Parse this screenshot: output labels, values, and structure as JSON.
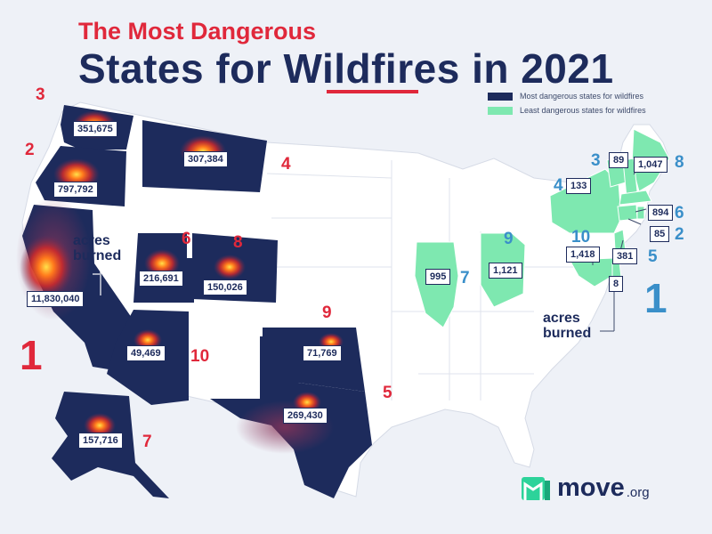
{
  "title": {
    "line1": "The Most Dangerous",
    "line2": "States for Wildfires in 2021"
  },
  "legend": {
    "most": "Most dangerous states for wildfires",
    "least": "Least dangerous states for wildfires",
    "colors": {
      "most": "#1d2b5c",
      "least": "#7ee8b0"
    }
  },
  "most_dangerous": [
    {
      "rank": "1",
      "state": "California",
      "acres": "11,830,040"
    },
    {
      "rank": "2",
      "state": "Oregon",
      "acres": "797,792"
    },
    {
      "rank": "3",
      "state": "Washington",
      "acres": "351,675"
    },
    {
      "rank": "4",
      "state": "Montana",
      "acres": "307,384"
    },
    {
      "rank": "5",
      "state": "Texas",
      "acres": "269,430"
    },
    {
      "rank": "6",
      "state": "Utah",
      "acres": "216,691"
    },
    {
      "rank": "7",
      "state": "Alaska",
      "acres": "157,716"
    },
    {
      "rank": "8",
      "state": "Colorado",
      "acres": "150,026"
    },
    {
      "rank": "9",
      "state": "Oklahoma",
      "acres": "71,769"
    },
    {
      "rank": "10",
      "state": "Arizona",
      "acres": "49,469"
    }
  ],
  "least_dangerous": [
    {
      "rank": "1",
      "state": "Delaware",
      "acres": "8"
    },
    {
      "rank": "2",
      "state": "Rhode Island",
      "acres": "85"
    },
    {
      "rank": "3",
      "state": "Vermont",
      "acres": "89"
    },
    {
      "rank": "4",
      "state": "New York",
      "acres": "133"
    },
    {
      "rank": "5",
      "state": "New Jersey",
      "acres": "381"
    },
    {
      "rank": "6",
      "state": "Connecticut",
      "acres": "894"
    },
    {
      "rank": "7",
      "state": "Illinois",
      "acres": "995"
    },
    {
      "rank": "8",
      "state": "Maine",
      "acres": "1,047"
    },
    {
      "rank": "9",
      "state": "Ohio",
      "acres": "1,121"
    },
    {
      "rank": "10",
      "state": "Maryland",
      "acres": "1,418"
    }
  ],
  "annotations": {
    "acres_burned_left": [
      "acres",
      "burned"
    ],
    "acres_burned_right": [
      "acres",
      "burned"
    ]
  },
  "brand": {
    "name": "move",
    "suffix": ".org"
  }
}
